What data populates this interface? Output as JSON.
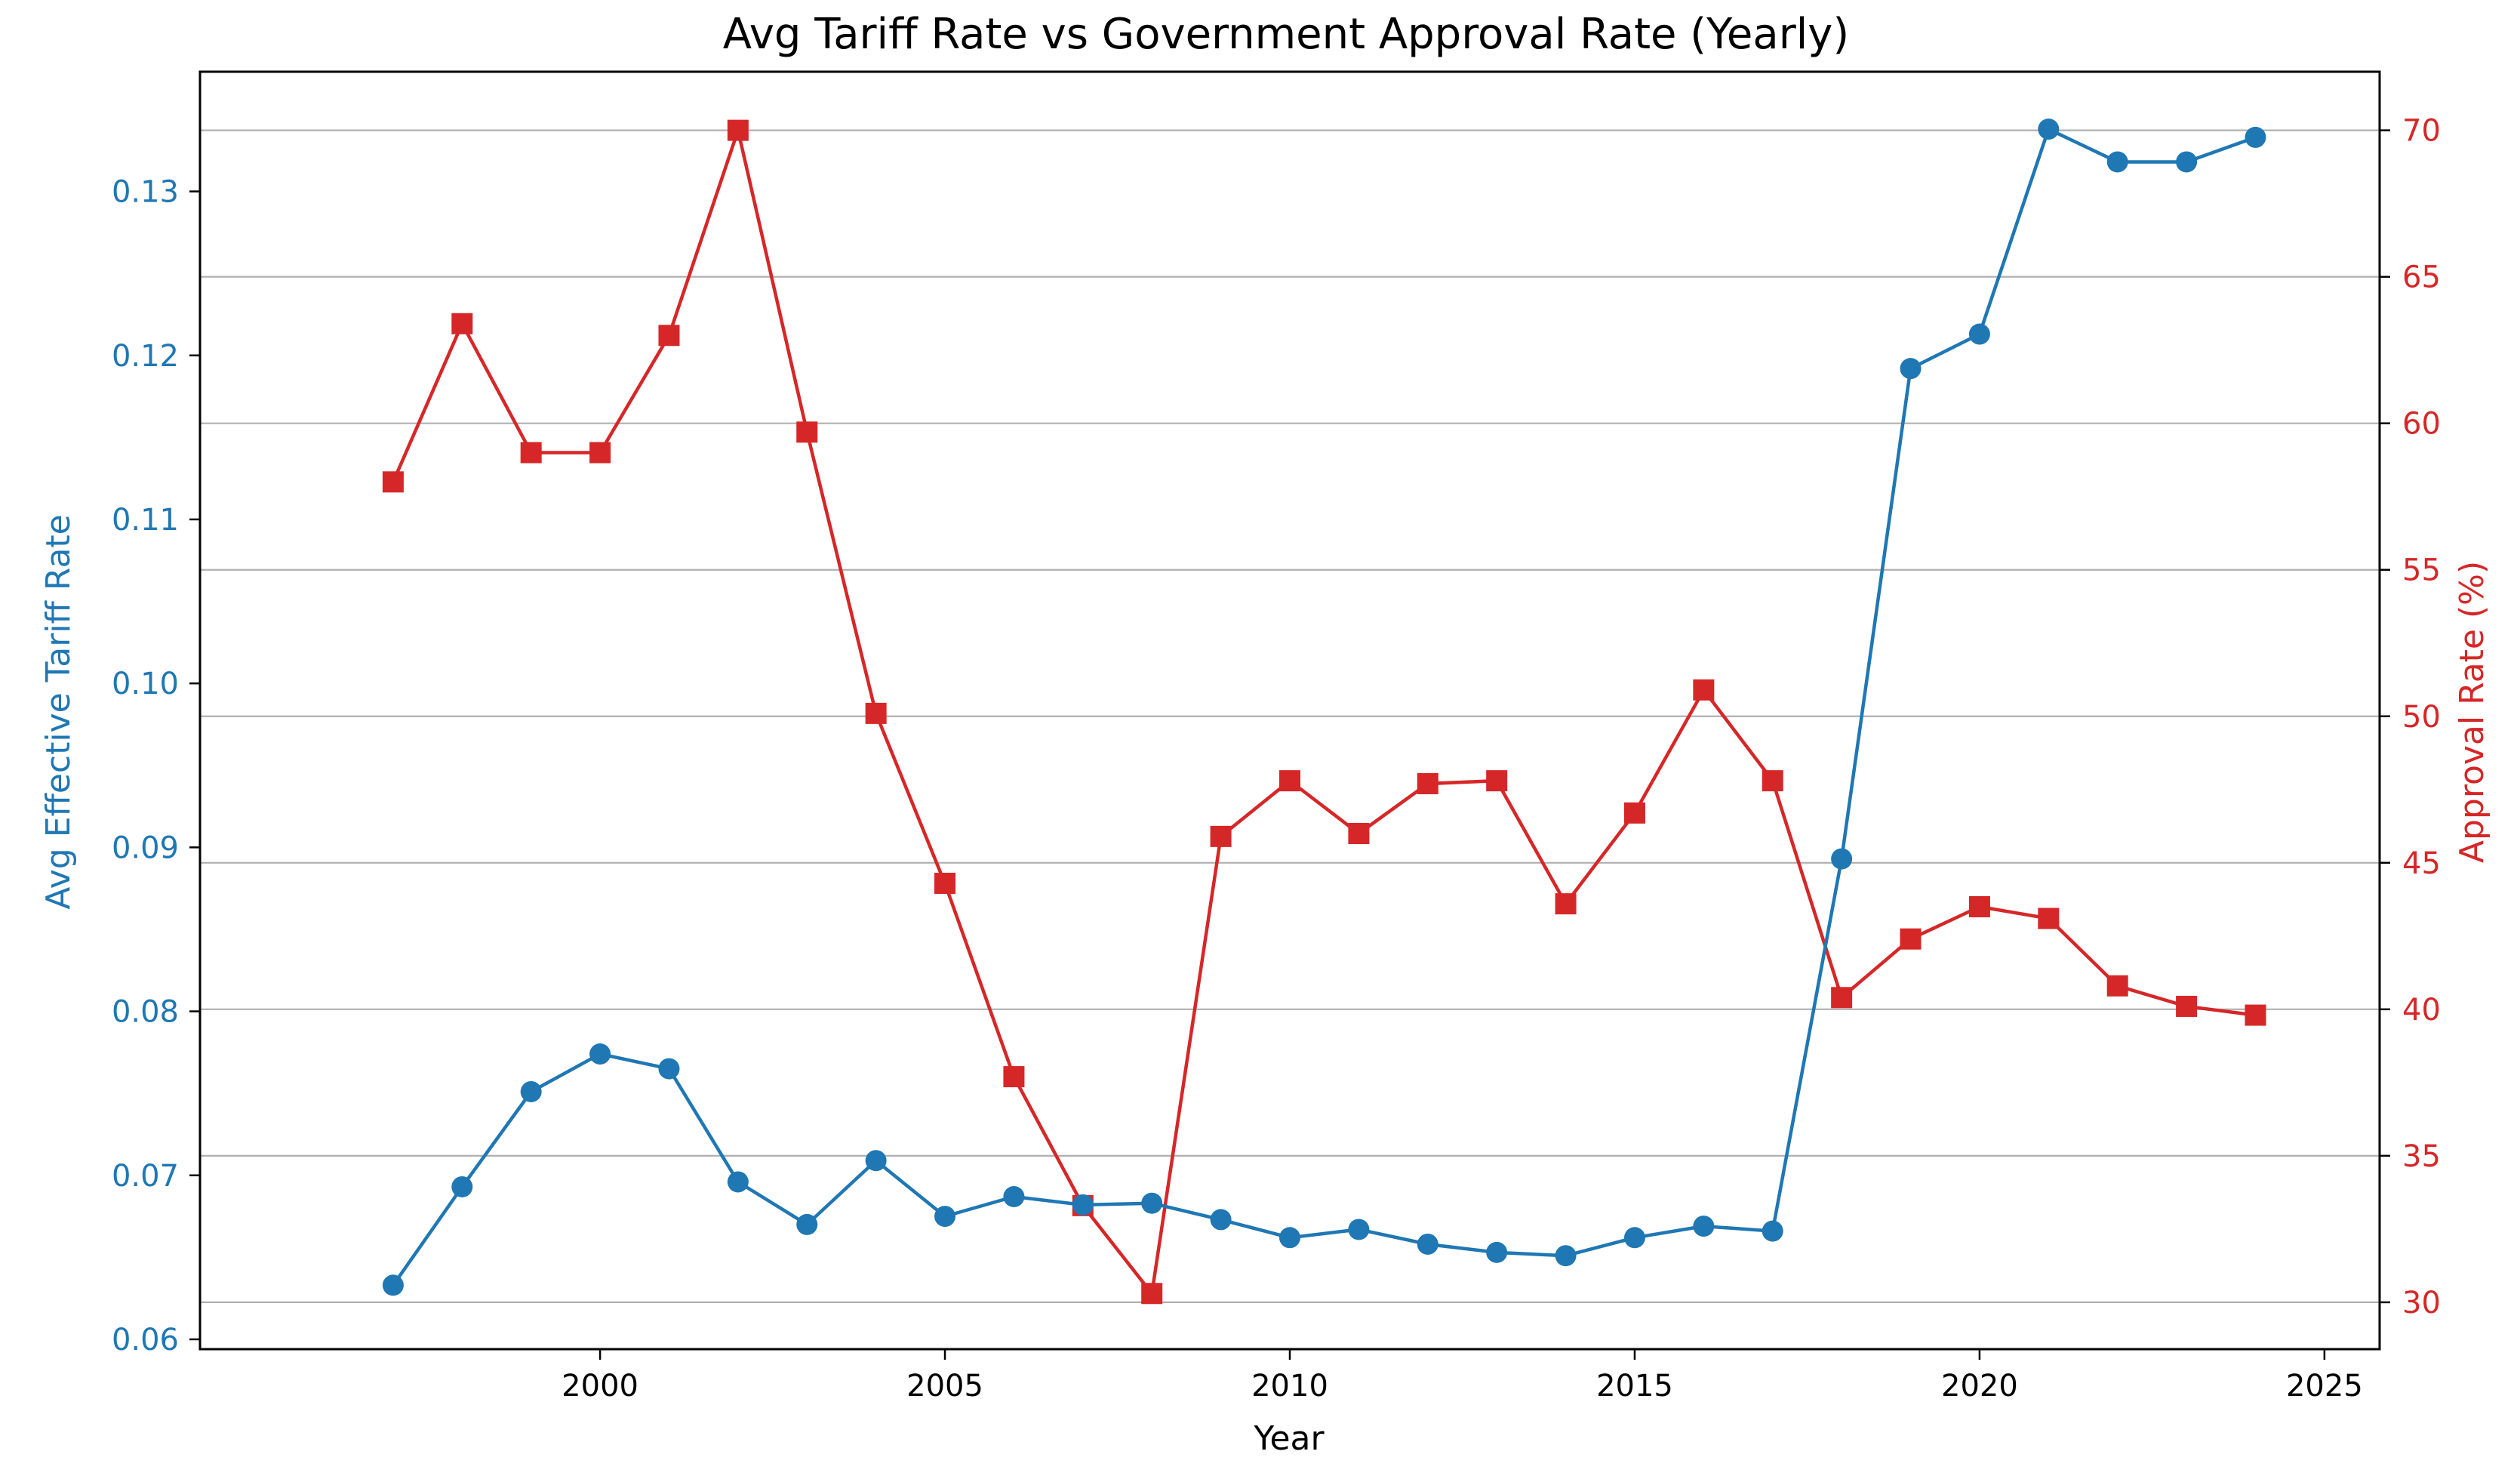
{
  "chart_data": {
    "type": "line",
    "title": "Avg Tariff Rate vs Government Approval Rate (Yearly)",
    "xlabel": "Year",
    "ylabel_left": "Avg Effective Tariff Rate",
    "ylabel_right": "Approval Rate (%)",
    "xlim": [
      1994.2,
      2025.8
    ],
    "ylim_left": [
      0.0594,
      0.1373
    ],
    "ylim_right": [
      28.4,
      72.0
    ],
    "x_ticks": [
      2000,
      2005,
      2010,
      2015,
      2020,
      2025
    ],
    "y_ticks_left": [
      0.06,
      0.07,
      0.08,
      0.09,
      0.1,
      0.11,
      0.12,
      0.13
    ],
    "y_tick_labels_left": [
      "0.06",
      "0.07",
      "0.08",
      "0.09",
      "0.10",
      "0.11",
      "0.12",
      "0.13"
    ],
    "y_ticks_right": [
      30,
      35,
      40,
      45,
      50,
      55,
      60,
      65,
      70
    ],
    "grid": "horizontal (right axis)",
    "colors": {
      "tariff": "#1f77b4",
      "approval": "#d62728",
      "grid": "#b0b0b0",
      "axes": "#000000"
    },
    "x": [
      1997,
      1998,
      1999,
      2000,
      2001,
      2002,
      2003,
      2004,
      2005,
      2006,
      2007,
      2008,
      2009,
      2010,
      2011,
      2012,
      2013,
      2014,
      2015,
      2016,
      2017,
      2018,
      2019,
      2020,
      2021,
      2022,
      2023,
      2024
    ],
    "series": [
      {
        "name": "Avg Effective Tariff Rate",
        "axis": "left",
        "marker": "circle",
        "values": [
          0.0633,
          0.0693,
          0.0751,
          0.0774,
          0.0765,
          0.0696,
          0.067,
          0.0709,
          0.0675,
          0.0687,
          0.0682,
          0.0683,
          0.0673,
          0.0662,
          0.0667,
          0.0658,
          0.0653,
          0.0651,
          0.0662,
          0.0669,
          0.0666,
          0.0893,
          0.1192,
          0.1213,
          0.1338,
          0.1318,
          0.1318,
          0.1333
        ]
      },
      {
        "name": "Approval Rate (%)",
        "axis": "right",
        "marker": "square",
        "values": [
          58.0,
          63.4,
          59.0,
          59.0,
          63.0,
          70.0,
          59.7,
          50.1,
          44.3,
          37.7,
          33.3,
          30.3,
          45.9,
          47.8,
          46.0,
          47.7,
          47.8,
          43.6,
          46.7,
          50.9,
          47.8,
          40.4,
          42.4,
          43.5,
          43.1,
          40.8,
          40.1,
          39.8
        ]
      }
    ]
  }
}
